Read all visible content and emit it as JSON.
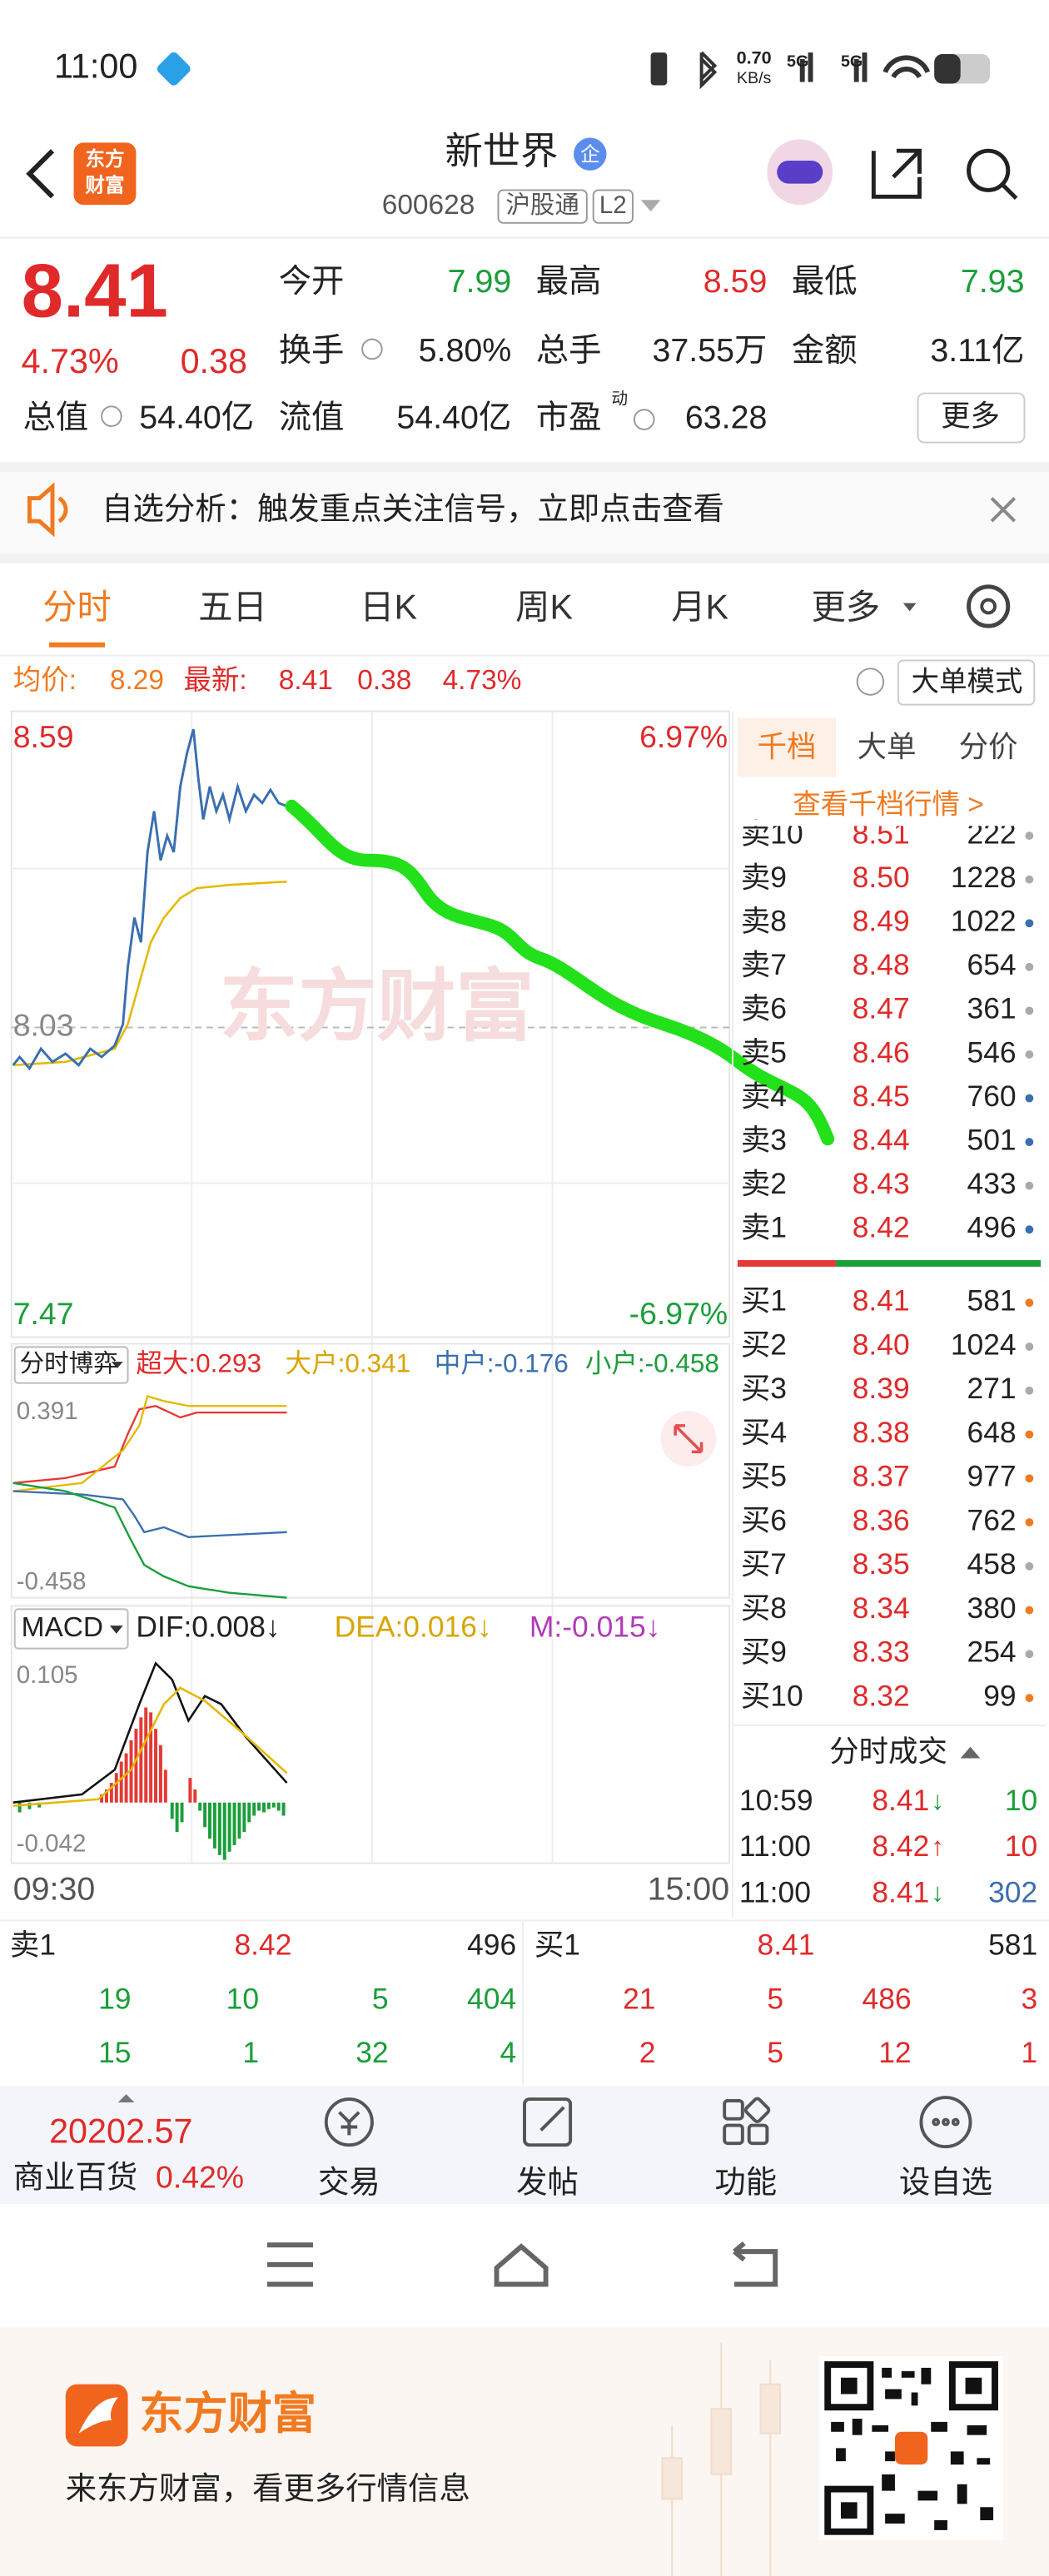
{
  "status_bar": {
    "time": "11:00",
    "net_speed": "0.70",
    "net_unit": "KB/s",
    "signal_1": "5G",
    "signal_2": "5G"
  },
  "header": {
    "logo": [
      "东方",
      "财富"
    ],
    "title": "新世界",
    "badge": "企",
    "code": "600628",
    "tag": "沪股通",
    "level": "L2"
  },
  "quote": {
    "price": "8.41",
    "change_pct": "4.73%",
    "change": "0.38",
    "fields": [
      {
        "label": "今开",
        "value": "7.99"
      },
      {
        "label": "最高",
        "value": "8.59"
      },
      {
        "label": "最低",
        "value": "7.93"
      },
      {
        "label": "换手",
        "value": "5.80%"
      },
      {
        "label": "总手",
        "value": "37.55万"
      },
      {
        "label": "金额",
        "value": "3.11亿"
      },
      {
        "label": "总值",
        "value": "54.40亿"
      },
      {
        "label": "流值",
        "value": "54.40亿"
      },
      {
        "label": "市盈",
        "sup": "动",
        "value": "63.28"
      }
    ],
    "more": "更多"
  },
  "banner": {
    "text": "自选分析：触发重点关注信号，立即点击查看"
  },
  "tabs": [
    "分时",
    "五日",
    "日K",
    "周K",
    "月K",
    "更多"
  ],
  "info_bar": {
    "avg_label": "均价:",
    "avg": "8.29",
    "latest_label": "最新:",
    "latest": "8.41",
    "change": "0.38",
    "change_pct": "4.73%",
    "mode_button": "大单模式"
  },
  "intraday_chart": {
    "high": "8.59",
    "high_pct": "6.97%",
    "prev_close": "8.03",
    "low": "7.47",
    "low_pct": "-6.97%",
    "watermark": "东方财富",
    "time_start": "09:30",
    "time_end": "15:00"
  },
  "flow_chart": {
    "selector": "分时博弈",
    "legend": [
      "超大:0.293",
      "大户:0.341",
      "中户:-0.176",
      "小户:-0.458"
    ],
    "max": "0.391",
    "min": "-0.458"
  },
  "macd_chart": {
    "selector": "MACD",
    "legend": [
      "DIF:0.008↓",
      "DEA:0.016↓",
      "M:-0.015↓"
    ],
    "max": "0.105",
    "min": "-0.042"
  },
  "order_book": {
    "tabs": [
      "千档",
      "大单",
      "分价"
    ],
    "link": "查看千档行情 >",
    "asks": [
      [
        "卖10",
        "8.51",
        "222"
      ],
      [
        "卖9",
        "8.50",
        "1228"
      ],
      [
        "卖8",
        "8.49",
        "1022"
      ],
      [
        "卖7",
        "8.48",
        "654"
      ],
      [
        "卖6",
        "8.47",
        "361"
      ],
      [
        "卖5",
        "8.46",
        "546"
      ],
      [
        "卖4",
        "8.45",
        "760"
      ],
      [
        "卖3",
        "8.44",
        "501"
      ],
      [
        "卖2",
        "8.43",
        "433"
      ],
      [
        "卖1",
        "8.42",
        "496"
      ]
    ],
    "bids": [
      [
        "买1",
        "8.41",
        "581"
      ],
      [
        "买2",
        "8.40",
        "1024"
      ],
      [
        "买3",
        "8.39",
        "271"
      ],
      [
        "买4",
        "8.38",
        "648"
      ],
      [
        "买5",
        "8.37",
        "977"
      ],
      [
        "买6",
        "8.36",
        "762"
      ],
      [
        "买7",
        "8.35",
        "458"
      ],
      [
        "买8",
        "8.34",
        "380"
      ],
      [
        "买9",
        "8.33",
        "254"
      ],
      [
        "买10",
        "8.32",
        "99"
      ]
    ]
  },
  "trades": {
    "title": "分时成交",
    "rows": [
      [
        "10:59",
        "8.41",
        "↓",
        "10"
      ],
      [
        "11:00",
        "8.42",
        "↑",
        "10"
      ],
      [
        "11:00",
        "8.41",
        "↓",
        "302"
      ]
    ]
  },
  "summary": {
    "ask": [
      "卖1",
      "8.42",
      "496"
    ],
    "bid": [
      "买1",
      "8.41",
      "581"
    ],
    "rows": [
      [
        "19",
        "10",
        "5",
        "404",
        "21",
        "5",
        "486",
        "3"
      ],
      [
        "15",
        "1",
        "32",
        "4",
        "2",
        "5",
        "12",
        "1"
      ]
    ]
  },
  "bottom_bar": {
    "index_value": "20202.57",
    "sector": "商业百货",
    "sector_pct": "0.42%",
    "actions": [
      "交易",
      "发帖",
      "功能",
      "设自选"
    ]
  },
  "footer": {
    "brand": "东方财富",
    "slogan": "来东方财富，看更多行情信息"
  }
}
